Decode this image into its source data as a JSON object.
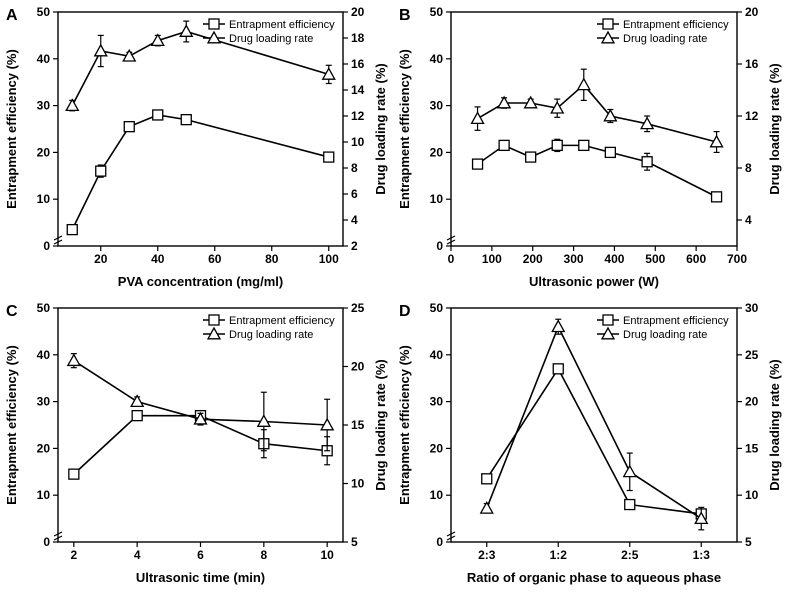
{
  "global": {
    "bg": "#ffffff",
    "line_color": "#000000",
    "marker_fill": "#ffffff",
    "marker_stroke": "#000000",
    "axis_color": "#000000",
    "tick_font_size": 12,
    "label_font_size": 13,
    "panel_label_font_size": 16,
    "legend_font_size": 11,
    "line_width": 1.6,
    "marker_size": 5,
    "error_cap": 3
  },
  "panels": {
    "A": {
      "label": "A",
      "xlabel": "PVA concentration (mg/ml)",
      "ylabel_left": "Entrapment efficiency (%)",
      "ylabel_right": "Drug loading rate (%)",
      "xlim": [
        5,
        105
      ],
      "xticks": [
        20,
        40,
        60,
        80,
        100
      ],
      "ylim_left": [
        0,
        50
      ],
      "yticks_left": [
        0,
        10,
        20,
        30,
        40,
        50
      ],
      "ylim_right": [
        2,
        20
      ],
      "yticks_right": [
        2,
        4,
        6,
        8,
        10,
        12,
        14,
        16,
        18,
        20
      ],
      "x": [
        10,
        20,
        30,
        40,
        50,
        100
      ],
      "ee": {
        "y": [
          3.5,
          16,
          25.5,
          28,
          27,
          19
        ],
        "err": [
          0.5,
          1.3,
          0.6,
          0.5,
          0.6,
          0.5
        ]
      },
      "dlr": {
        "y": [
          12.8,
          17,
          16.6,
          17.8,
          18.5,
          15.2
        ],
        "err": [
          0.4,
          1.2,
          0.3,
          0.4,
          0.8,
          0.7
        ]
      },
      "legend": {
        "ee": "Entrapment efficiency",
        "dlr": "Drug loading rate"
      }
    },
    "B": {
      "label": "B",
      "xlabel": "Ultrasonic power (W)",
      "ylabel_left": "Entrapment efficiency (%)",
      "ylabel_right": "Drug loading rate (%)",
      "xlim": [
        0,
        700
      ],
      "xticks": [
        0,
        100,
        200,
        300,
        400,
        500,
        600,
        700
      ],
      "ylim_left": [
        0,
        50
      ],
      "yticks_left": [
        0,
        10,
        20,
        30,
        40,
        50
      ],
      "ylim_right": [
        2,
        20
      ],
      "yticks_right": [
        4,
        8,
        12,
        16,
        20
      ],
      "x": [
        65,
        130,
        195,
        260,
        325,
        390,
        480,
        650
      ],
      "ee": {
        "y": [
          17.5,
          21.5,
          19,
          21.5,
          21.5,
          20,
          18,
          10.5
        ],
        "err": [
          1.0,
          0.5,
          0.5,
          1.3,
          1.0,
          1.0,
          1.8,
          0.8
        ]
      },
      "dlr": {
        "y": [
          11.8,
          13,
          13,
          12.6,
          14.4,
          12,
          11.4,
          10
        ],
        "err": [
          0.9,
          0.4,
          0.3,
          0.7,
          1.2,
          0.5,
          0.6,
          0.8
        ]
      },
      "legend": {
        "ee": "Entrapment efficiency",
        "dlr": "Drug loading rate"
      }
    },
    "C": {
      "label": "C",
      "xlabel": "Ultrasonic time (min)",
      "ylabel_left": "Entrapment efficiency (%)",
      "ylabel_right": "Drug loading rate (%)",
      "xlim": [
        1.5,
        10.5
      ],
      "xticks": [
        2,
        4,
        6,
        8,
        10
      ],
      "ylim_left": [
        0,
        50
      ],
      "yticks_left": [
        0,
        10,
        20,
        30,
        40,
        50
      ],
      "ylim_right": [
        5,
        25
      ],
      "yticks_right": [
        5,
        10,
        15,
        20,
        25
      ],
      "x": [
        2,
        4,
        6,
        8,
        10
      ],
      "ee": {
        "y": [
          14.5,
          27,
          27,
          21,
          19.5
        ],
        "err": [
          0.5,
          0.8,
          0.8,
          3.0,
          3.0
        ]
      },
      "dlr": {
        "y": [
          20.5,
          17,
          15.5,
          15.3,
          15
        ],
        "err": [
          0.6,
          0.4,
          0.5,
          2.5,
          2.2
        ]
      },
      "legend": {
        "ee": "Entrapment efficiency",
        "dlr": "Drug loading rate"
      }
    },
    "D": {
      "label": "D",
      "xlabel": "Ratio of organic phase to aqueous phase",
      "ylabel_left": "Entrapment efficiency (%)",
      "ylabel_right": "Drug loading rate (%)",
      "xlim": [
        0.5,
        4.5
      ],
      "xticks": [
        1,
        2,
        3,
        4
      ],
      "xticklabels": [
        "2:3",
        "1:2",
        "2:5",
        "1:3"
      ],
      "ylim_left": [
        0,
        50
      ],
      "yticks_left": [
        0,
        10,
        20,
        30,
        40,
        50
      ],
      "ylim_right": [
        5,
        30
      ],
      "yticks_right": [
        5,
        10,
        15,
        20,
        25,
        30
      ],
      "x": [
        1,
        2,
        3,
        4
      ],
      "ee": {
        "y": [
          13.5,
          37,
          8,
          6
        ],
        "err": [
          0.5,
          0.8,
          0.5,
          0.6
        ]
      },
      "dlr": {
        "y": [
          8.6,
          28,
          12.5,
          7.5
        ],
        "err": [
          0.5,
          0.8,
          2.0,
          1.2
        ]
      },
      "legend": {
        "ee": "Entrapment efficiency",
        "dlr": "Drug loading rate"
      }
    }
  }
}
